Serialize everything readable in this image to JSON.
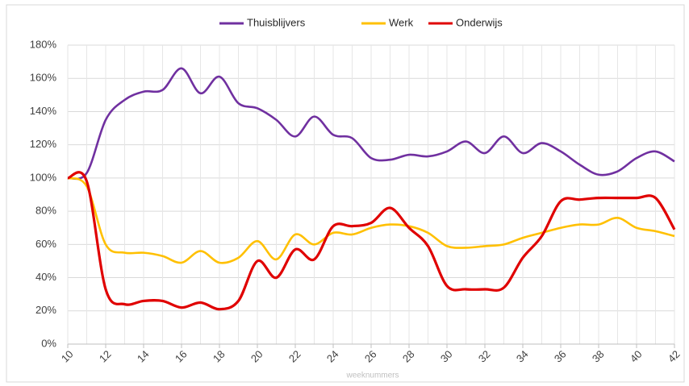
{
  "chart_data": {
    "type": "line",
    "x": [
      10,
      11,
      12,
      13,
      14,
      15,
      16,
      17,
      18,
      19,
      20,
      21,
      22,
      23,
      24,
      25,
      26,
      27,
      28,
      29,
      30,
      31,
      32,
      33,
      34,
      35,
      36,
      37,
      38,
      39,
      40,
      41,
      42
    ],
    "series": [
      {
        "name": "Thuisblijvers",
        "color": "#7030a0",
        "values": [
          100,
          103,
          135,
          147,
          152,
          153,
          166,
          151,
          161,
          145,
          142,
          135,
          125,
          137,
          126,
          124,
          112,
          111,
          114,
          113,
          116,
          122,
          115,
          125,
          115,
          121,
          116,
          108,
          102,
          104,
          112,
          116,
          110
        ]
      },
      {
        "name": "Werk",
        "color": "#ffc000",
        "values": [
          100,
          95,
          60,
          55,
          55,
          53,
          49,
          56,
          49,
          52,
          62,
          51,
          66,
          60,
          67,
          66,
          70,
          72,
          71,
          67,
          59,
          58,
          59,
          60,
          64,
          67,
          70,
          72,
          72,
          76,
          70,
          68,
          65
        ]
      },
      {
        "name": "Onderwijs",
        "color": "#e00000",
        "values": [
          100,
          98,
          33,
          24,
          26,
          26,
          22,
          25,
          21,
          26,
          50,
          40,
          57,
          51,
          71,
          71,
          73,
          82,
          70,
          59,
          35,
          33,
          33,
          34,
          52,
          65,
          86,
          87,
          88,
          88,
          88,
          88,
          69
        ]
      }
    ],
    "xlabel": "weeknummers",
    "xlim": [
      10,
      42
    ],
    "xticks": [
      10,
      12,
      14,
      16,
      18,
      20,
      22,
      24,
      26,
      28,
      30,
      32,
      34,
      36,
      38,
      40,
      42
    ],
    "ylim": [
      0,
      180
    ],
    "yticks": [
      {
        "value": 0,
        "label": "0%"
      },
      {
        "value": 20,
        "label": "20%"
      },
      {
        "value": 40,
        "label": "40%"
      },
      {
        "value": 60,
        "label": "60%"
      },
      {
        "value": 80,
        "label": "80%"
      },
      {
        "value": 100,
        "label": "100%"
      },
      {
        "value": 120,
        "label": "120%"
      },
      {
        "value": 140,
        "label": "140%"
      },
      {
        "value": 160,
        "label": "160%"
      },
      {
        "value": 180,
        "label": "180%"
      }
    ],
    "grid": true,
    "legend": "top"
  }
}
